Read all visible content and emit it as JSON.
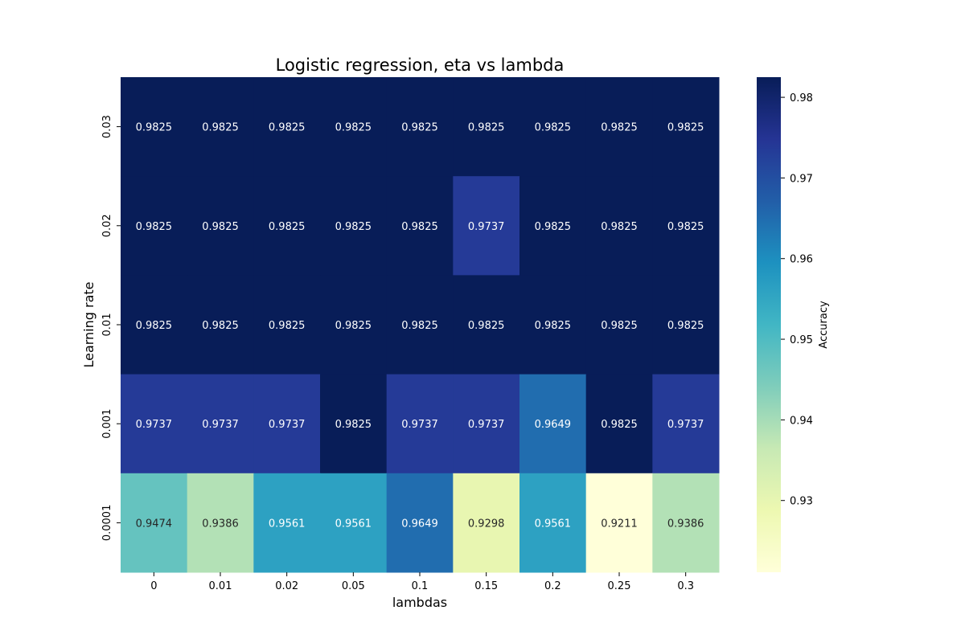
{
  "chart_data": {
    "type": "heatmap",
    "title": "Logistic regression, eta vs lambda",
    "xlabel": "lambdas",
    "ylabel": "Learning rate",
    "x_categories": [
      "0",
      "0.01",
      "0.02",
      "0.05",
      "0.1",
      "0.15",
      "0.2",
      "0.25",
      "0.3"
    ],
    "y_categories": [
      "0.03",
      "0.02",
      "0.01",
      "0.001",
      "0.0001"
    ],
    "values": [
      [
        0.9825,
        0.9825,
        0.9825,
        0.9825,
        0.9825,
        0.9825,
        0.9825,
        0.9825,
        0.9825
      ],
      [
        0.9825,
        0.9825,
        0.9825,
        0.9825,
        0.9825,
        0.9737,
        0.9825,
        0.9825,
        0.9825
      ],
      [
        0.9825,
        0.9825,
        0.9825,
        0.9825,
        0.9825,
        0.9825,
        0.9825,
        0.9825,
        0.9825
      ],
      [
        0.9737,
        0.9737,
        0.9737,
        0.9825,
        0.9737,
        0.9737,
        0.9649,
        0.9825,
        0.9737
      ],
      [
        0.9474,
        0.9386,
        0.9561,
        0.9561,
        0.9649,
        0.9298,
        0.9561,
        0.9211,
        0.9386
      ]
    ],
    "colorbar": {
      "label": "Accuracy",
      "colormap": "YlGnBu",
      "range": [
        0.9211,
        0.9825
      ],
      "ticks": [
        "0.93",
        "0.94",
        "0.95",
        "0.96",
        "0.97",
        "0.98"
      ]
    },
    "colors": {
      "ylgnbu": [
        "#ffffd9",
        "#edf8b1",
        "#c7e9b4",
        "#7fcdbb",
        "#41b6c4",
        "#1d91c0",
        "#225ea8",
        "#253494",
        "#081d58"
      ]
    }
  }
}
